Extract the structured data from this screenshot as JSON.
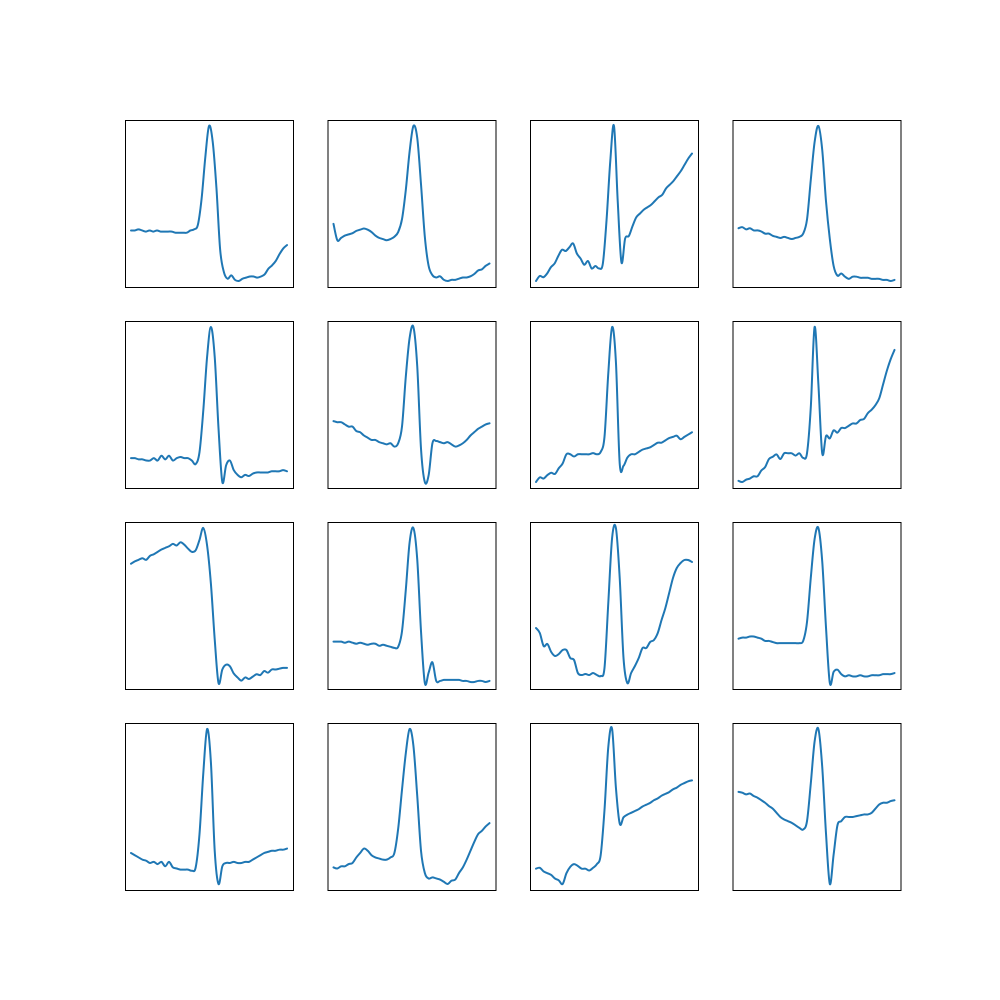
{
  "chart_data": [
    {
      "type": "line",
      "series": [
        {
          "values": [
            0.07,
            0.07,
            0.08,
            0.07,
            0.06,
            0.07,
            0.06,
            0.07,
            0.06,
            0.06,
            0.06,
            0.06,
            0.05,
            0.05,
            0.05,
            0.05,
            0.07,
            0.08,
            0.12,
            0.35,
            0.72,
            1.0,
            0.86,
            0.45,
            -0.1,
            -0.3,
            -0.36,
            -0.33,
            -0.37,
            -0.38,
            -0.36,
            -0.35,
            -0.34,
            -0.34,
            -0.35,
            -0.34,
            -0.32,
            -0.27,
            -0.24,
            -0.2,
            -0.14,
            -0.09,
            -0.06
          ]
        }
      ],
      "color": "#1f77b4"
    },
    {
      "type": "line",
      "series": [
        {
          "values": [
            0.16,
            0.02,
            0.04,
            0.06,
            0.07,
            0.08,
            0.1,
            0.11,
            0.12,
            0.11,
            0.09,
            0.06,
            0.04,
            0.03,
            0.02,
            0.03,
            0.05,
            0.09,
            0.2,
            0.45,
            0.78,
            1.0,
            0.9,
            0.5,
            0.05,
            -0.2,
            -0.28,
            -0.3,
            -0.29,
            -0.32,
            -0.33,
            -0.32,
            -0.32,
            -0.31,
            -0.3,
            -0.3,
            -0.29,
            -0.27,
            -0.24,
            -0.23,
            -0.2,
            -0.18
          ]
        }
      ],
      "color": "#1f77b4"
    },
    {
      "type": "line",
      "series": [
        {
          "values": [
            -0.24,
            -0.2,
            -0.21,
            -0.18,
            -0.13,
            -0.1,
            -0.04,
            0.01,
            0.0,
            0.03,
            0.06,
            -0.02,
            -0.06,
            -0.11,
            -0.08,
            -0.14,
            -0.12,
            -0.14,
            -0.1,
            0.25,
            0.72,
            1.0,
            0.4,
            -0.09,
            0.1,
            0.12,
            0.2,
            0.27,
            0.3,
            0.33,
            0.35,
            0.37,
            0.4,
            0.43,
            0.45,
            0.5,
            0.53,
            0.56,
            0.6,
            0.64,
            0.69,
            0.74,
            0.78
          ]
        }
      ],
      "color": "#1f77b4"
    },
    {
      "type": "line",
      "series": [
        {
          "values": [
            0.05,
            0.06,
            0.04,
            0.05,
            0.03,
            0.03,
            0.02,
            0.0,
            0.0,
            -0.02,
            -0.03,
            -0.04,
            -0.03,
            -0.04,
            -0.05,
            -0.04,
            -0.03,
            0.0,
            0.13,
            0.5,
            0.85,
            1.0,
            0.78,
            0.3,
            -0.05,
            -0.3,
            -0.39,
            -0.37,
            -0.4,
            -0.42,
            -0.4,
            -0.4,
            -0.41,
            -0.41,
            -0.41,
            -0.42,
            -0.42,
            -0.42,
            -0.43,
            -0.43,
            -0.44,
            -0.43
          ]
        }
      ],
      "color": "#1f77b4"
    },
    {
      "type": "line",
      "series": [
        {
          "values": [
            -0.1,
            -0.1,
            -0.11,
            -0.11,
            -0.12,
            -0.12,
            -0.1,
            -0.12,
            -0.08,
            -0.11,
            -0.08,
            -0.12,
            -0.1,
            -0.09,
            -0.1,
            -0.1,
            -0.12,
            -0.15,
            -0.05,
            0.3,
            0.75,
            1.0,
            0.75,
            0.15,
            -0.3,
            -0.16,
            -0.12,
            -0.2,
            -0.24,
            -0.26,
            -0.24,
            -0.25,
            -0.23,
            -0.22,
            -0.22,
            -0.22,
            -0.22,
            -0.21,
            -0.21,
            -0.21,
            -0.2,
            -0.21
          ]
        }
      ],
      "color": "#1f77b4"
    },
    {
      "type": "line",
      "series": [
        {
          "values": [
            0.15,
            0.14,
            0.14,
            0.12,
            0.1,
            0.1,
            0.06,
            0.05,
            0.02,
            0.0,
            -0.02,
            -0.02,
            -0.04,
            -0.05,
            -0.06,
            -0.05,
            -0.08,
            -0.05,
            0.1,
            0.55,
            0.9,
            1.0,
            0.65,
            -0.1,
            -0.4,
            -0.34,
            -0.05,
            -0.03,
            -0.04,
            -0.05,
            -0.04,
            -0.06,
            -0.08,
            -0.07,
            -0.05,
            -0.02,
            0.02,
            0.05,
            0.08,
            0.1,
            0.12,
            0.13
          ]
        }
      ],
      "color": "#1f77b4"
    },
    {
      "type": "line",
      "series": [
        {
          "values": [
            -0.34,
            -0.3,
            -0.31,
            -0.28,
            -0.26,
            -0.27,
            -0.22,
            -0.18,
            -0.1,
            -0.1,
            -0.12,
            -0.1,
            -0.1,
            -0.1,
            -0.1,
            -0.09,
            -0.1,
            -0.08,
            0.05,
            0.6,
            1.0,
            0.7,
            -0.18,
            -0.2,
            -0.13,
            -0.1,
            -0.1,
            -0.08,
            -0.06,
            -0.05,
            -0.04,
            -0.02,
            0.0,
            0.0,
            0.02,
            0.04,
            0.05,
            0.06,
            0.03,
            0.05,
            0.07,
            0.09
          ]
        }
      ],
      "color": "#1f77b4"
    },
    {
      "type": "line",
      "series": [
        {
          "values": [
            -0.34,
            -0.35,
            -0.33,
            -0.32,
            -0.3,
            -0.3,
            -0.25,
            -0.22,
            -0.15,
            -0.13,
            -0.11,
            -0.15,
            -0.1,
            -0.1,
            -0.1,
            -0.12,
            -0.1,
            -0.14,
            -0.1,
            0.3,
            1.0,
            0.5,
            -0.1,
            0.05,
            0.03,
            0.1,
            0.08,
            0.12,
            0.12,
            0.14,
            0.16,
            0.16,
            0.19,
            0.2,
            0.25,
            0.28,
            0.32,
            0.38,
            0.5,
            0.62,
            0.72,
            0.8
          ]
        }
      ],
      "color": "#1f77b4"
    },
    {
      "type": "line",
      "series": [
        {
          "values": [
            0.55,
            0.58,
            0.6,
            0.62,
            0.6,
            0.65,
            0.67,
            0.7,
            0.73,
            0.75,
            0.77,
            0.8,
            0.78,
            0.82,
            0.79,
            0.74,
            0.7,
            0.72,
            0.85,
            1.0,
            0.78,
            0.3,
            -0.4,
            -0.95,
            -0.78,
            -0.72,
            -0.74,
            -0.83,
            -0.88,
            -0.92,
            -0.88,
            -0.9,
            -0.87,
            -0.84,
            -0.85,
            -0.8,
            -0.82,
            -0.78,
            -0.78,
            -0.77,
            -0.76,
            -0.76
          ]
        }
      ],
      "color": "#1f77b4"
    },
    {
      "type": "line",
      "series": [
        {
          "values": [
            -0.1,
            -0.1,
            -0.1,
            -0.11,
            -0.1,
            -0.11,
            -0.12,
            -0.11,
            -0.12,
            -0.13,
            -0.12,
            -0.12,
            -0.14,
            -0.13,
            -0.14,
            -0.15,
            -0.16,
            -0.15,
            0.0,
            0.4,
            0.86,
            1.0,
            0.7,
            0.0,
            -0.5,
            -0.4,
            -0.3,
            -0.48,
            -0.48,
            -0.47,
            -0.47,
            -0.47,
            -0.47,
            -0.47,
            -0.48,
            -0.48,
            -0.49,
            -0.49,
            -0.48,
            -0.48,
            -0.49,
            -0.48
          ]
        }
      ],
      "color": "#1f77b4"
    },
    {
      "type": "line",
      "series": [
        {
          "values": [
            0.0,
            -0.05,
            -0.18,
            -0.16,
            -0.24,
            -0.28,
            -0.26,
            -0.22,
            -0.22,
            -0.3,
            -0.32,
            -0.45,
            -0.47,
            -0.46,
            -0.47,
            -0.45,
            -0.47,
            -0.48,
            -0.4,
            0.25,
            0.9,
            1.0,
            0.5,
            -0.3,
            -0.55,
            -0.45,
            -0.38,
            -0.3,
            -0.2,
            -0.2,
            -0.14,
            -0.12,
            -0.05,
            0.08,
            0.2,
            0.35,
            0.5,
            0.6,
            0.65,
            0.68,
            0.68,
            0.66
          ]
        }
      ],
      "color": "#1f77b4"
    },
    {
      "type": "line",
      "series": [
        {
          "values": [
            0.0,
            0.01,
            0.01,
            0.02,
            0.02,
            0.01,
            0.0,
            -0.02,
            -0.02,
            -0.03,
            -0.04,
            -0.04,
            -0.04,
            -0.04,
            -0.04,
            -0.04,
            -0.04,
            -0.02,
            0.15,
            0.55,
            0.9,
            1.0,
            0.7,
            0.1,
            -0.4,
            -0.3,
            -0.28,
            -0.32,
            -0.34,
            -0.33,
            -0.34,
            -0.34,
            -0.33,
            -0.34,
            -0.34,
            -0.33,
            -0.33,
            -0.33,
            -0.32,
            -0.32,
            -0.32,
            -0.31
          ]
        }
      ],
      "color": "#1f77b4"
    },
    {
      "type": "line",
      "series": [
        {
          "values": [
            -0.12,
            -0.14,
            -0.16,
            -0.18,
            -0.19,
            -0.21,
            -0.2,
            -0.22,
            -0.2,
            -0.24,
            -0.2,
            -0.25,
            -0.26,
            -0.27,
            -0.27,
            -0.27,
            -0.28,
            -0.25,
            0.05,
            0.6,
            1.0,
            0.7,
            -0.1,
            -0.4,
            -0.24,
            -0.21,
            -0.21,
            -0.2,
            -0.21,
            -0.21,
            -0.2,
            -0.2,
            -0.18,
            -0.16,
            -0.14,
            -0.12,
            -0.11,
            -0.1,
            -0.1,
            -0.09,
            -0.09,
            -0.08
          ]
        }
      ],
      "color": "#1f77b4"
    },
    {
      "type": "line",
      "series": [
        {
          "values": [
            -0.25,
            -0.26,
            -0.24,
            -0.24,
            -0.22,
            -0.21,
            -0.16,
            -0.12,
            -0.08,
            -0.1,
            -0.14,
            -0.16,
            -0.17,
            -0.18,
            -0.18,
            -0.16,
            -0.12,
            0.1,
            0.45,
            0.78,
            1.0,
            0.85,
            0.4,
            -0.1,
            -0.3,
            -0.35,
            -0.34,
            -0.35,
            -0.36,
            -0.38,
            -0.4,
            -0.37,
            -0.36,
            -0.3,
            -0.25,
            -0.18,
            -0.1,
            -0.02,
            0.05,
            0.08,
            0.12,
            0.15
          ]
        }
      ],
      "color": "#1f77b4"
    },
    {
      "type": "line",
      "series": [
        {
          "values": [
            -0.55,
            -0.54,
            -0.58,
            -0.6,
            -0.62,
            -0.66,
            -0.68,
            -0.72,
            -0.6,
            -0.53,
            -0.5,
            -0.52,
            -0.55,
            -0.55,
            -0.57,
            -0.54,
            -0.5,
            -0.4,
            0.1,
            0.8,
            1.0,
            0.35,
            -0.05,
            0.02,
            0.05,
            0.07,
            0.09,
            0.11,
            0.14,
            0.16,
            0.18,
            0.21,
            0.23,
            0.26,
            0.28,
            0.3,
            0.33,
            0.35,
            0.38,
            0.4,
            0.42,
            0.43
          ]
        }
      ],
      "color": "#1f77b4"
    },
    {
      "type": "line",
      "series": [
        {
          "values": [
            0.25,
            0.24,
            0.22,
            0.23,
            0.2,
            0.18,
            0.15,
            0.12,
            0.08,
            0.05,
            0.0,
            -0.05,
            -0.08,
            -0.1,
            -0.12,
            -0.15,
            -0.18,
            -0.2,
            -0.1,
            0.35,
            0.85,
            1.0,
            0.55,
            -0.25,
            -0.85,
            -0.5,
            -0.15,
            -0.1,
            -0.05,
            -0.05,
            -0.05,
            -0.04,
            -0.03,
            -0.02,
            -0.02,
            0.0,
            0.05,
            0.1,
            0.12,
            0.12,
            0.14,
            0.15
          ]
        }
      ],
      "color": "#1f77b4"
    }
  ]
}
